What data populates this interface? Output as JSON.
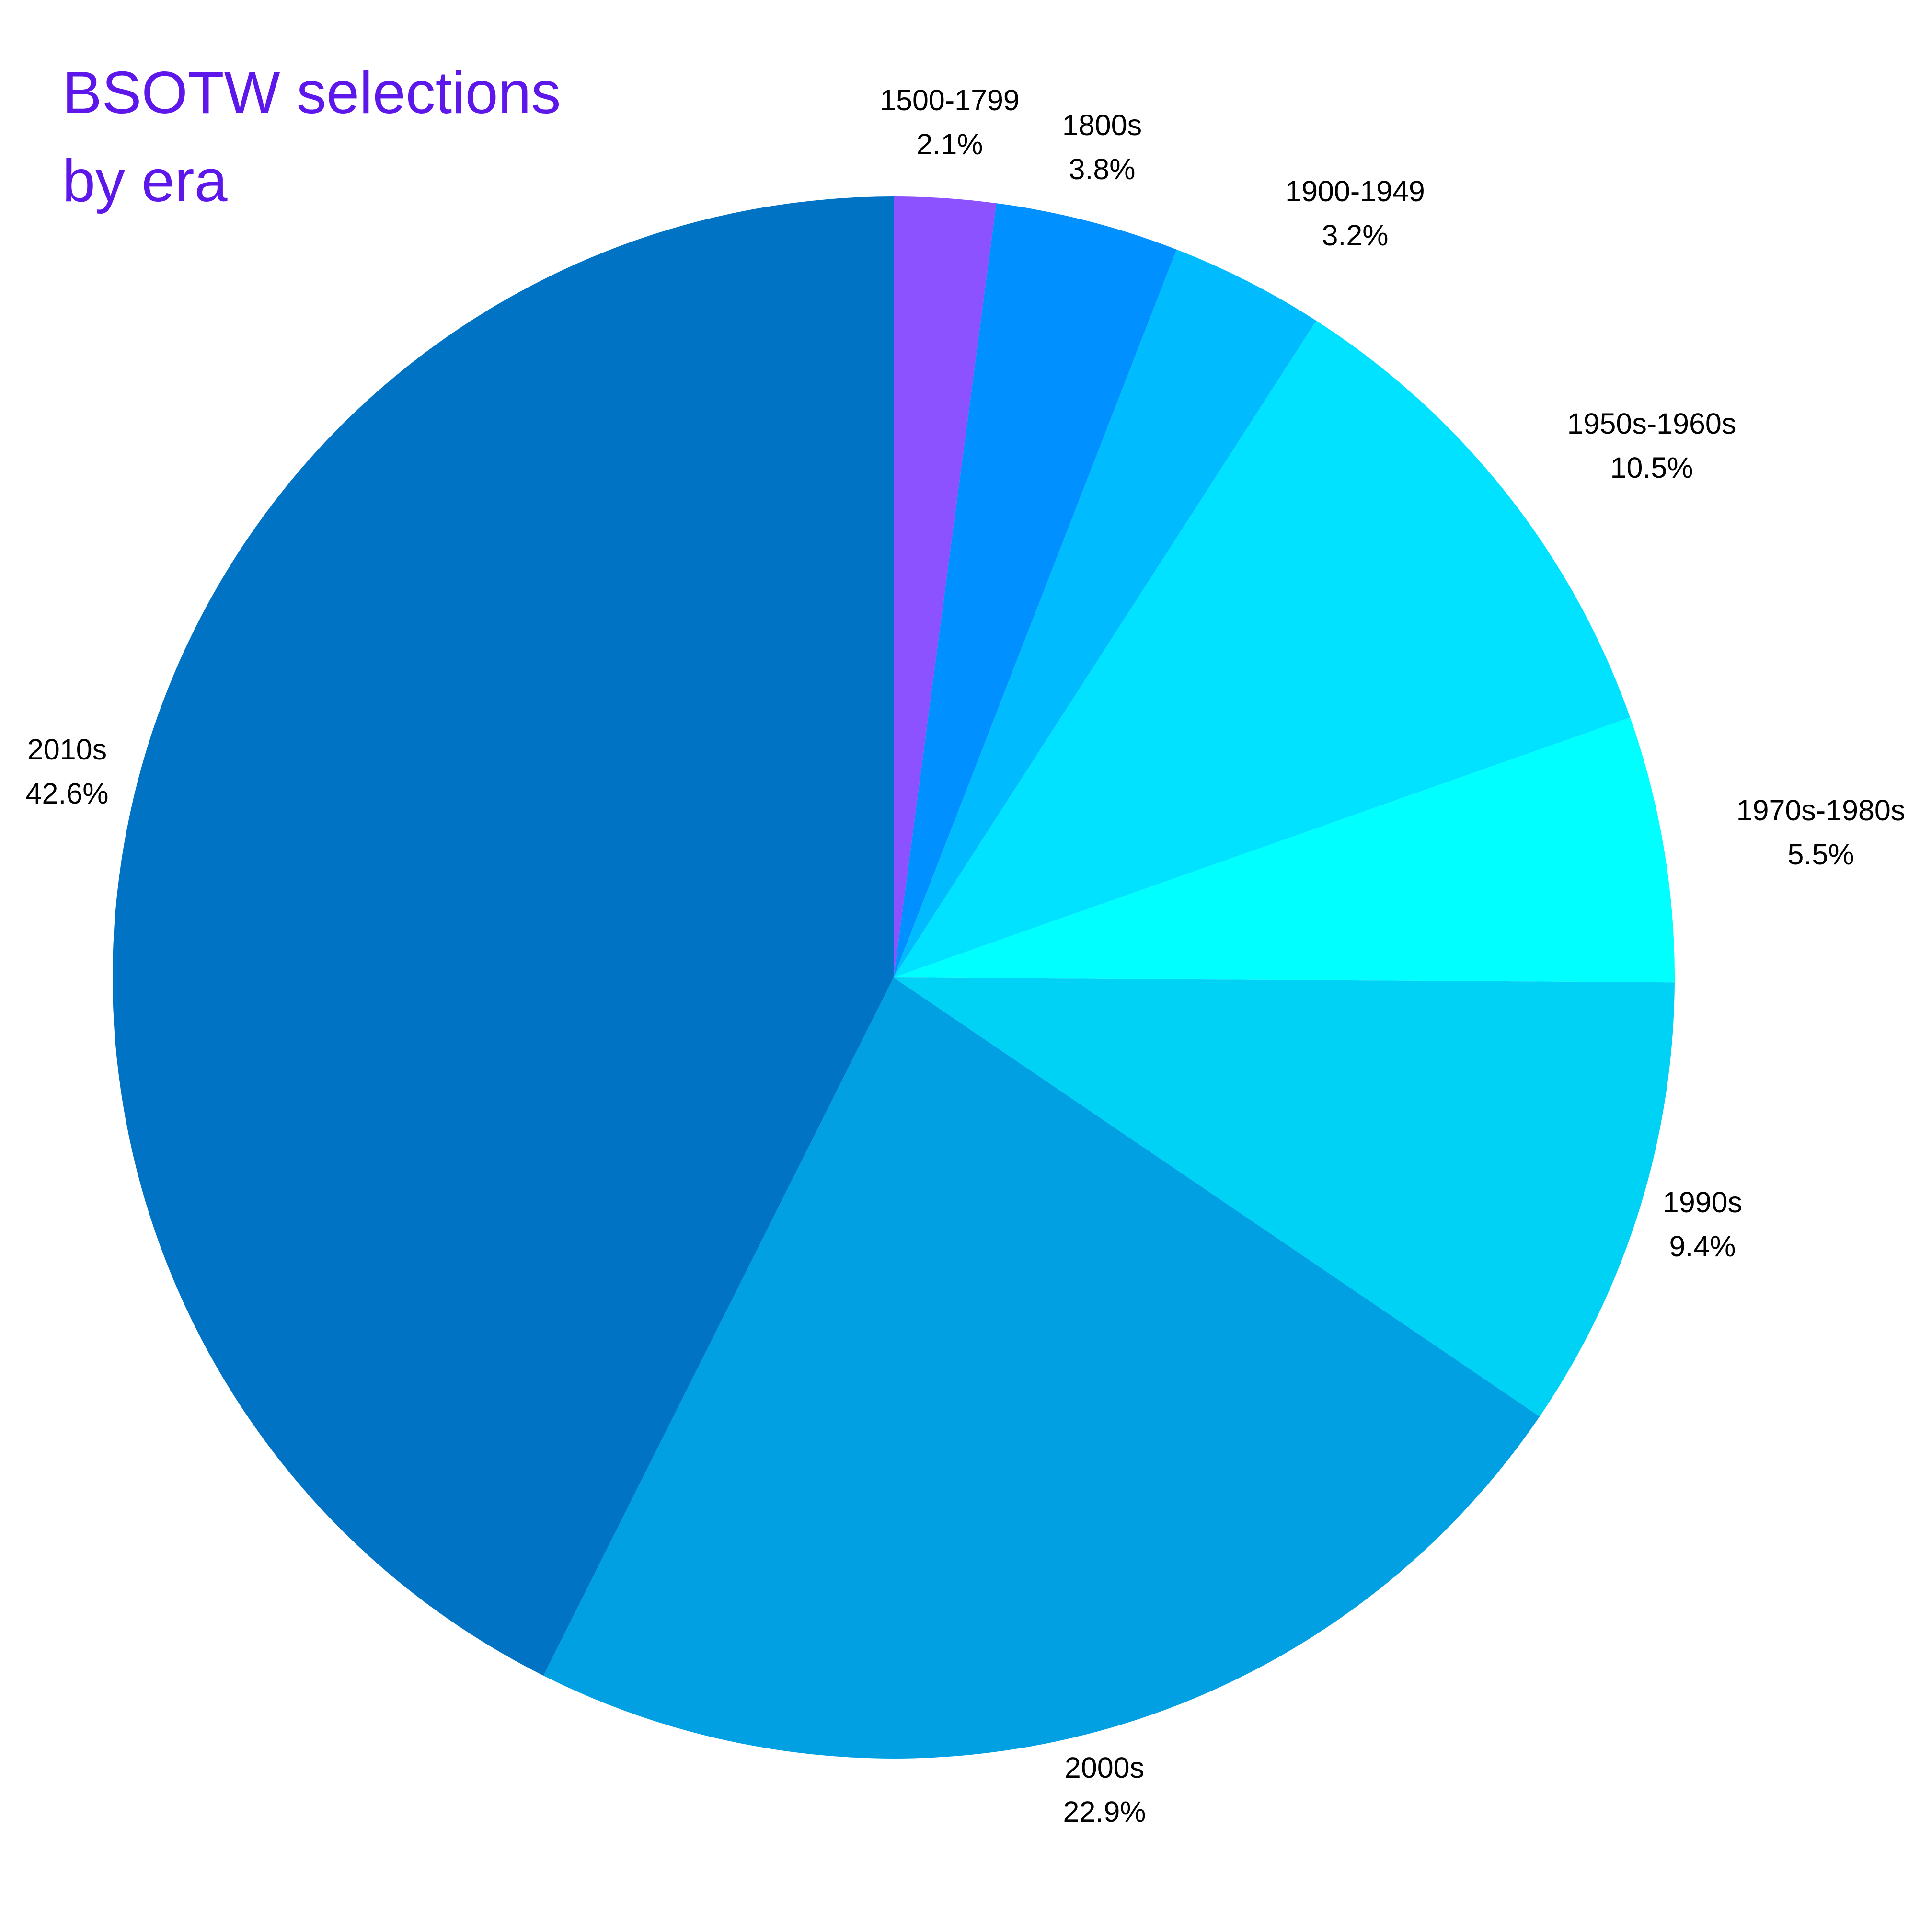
{
  "chart_data": {
    "type": "pie",
    "title_lines": [
      "BSOTW selections",
      "by era"
    ],
    "start_angle_deg": 0,
    "direction": "clockwise",
    "legend": "none",
    "colors": {
      "title": "#5e17eb",
      "label_text": "#000000",
      "background": "#ffffff"
    },
    "slices": [
      {
        "label": "1500-1799",
        "value": 2.1,
        "display": "2.1%",
        "color": "#8c52ff"
      },
      {
        "label": "1800s",
        "value": 3.8,
        "display": "3.8%",
        "color": "#0090ff"
      },
      {
        "label": "1900-1949",
        "value": 3.2,
        "display": "3.2%",
        "color": "#00bcff"
      },
      {
        "label": "1950s-1960s",
        "value": 10.5,
        "display": "10.5%",
        "color": "#00e2ff"
      },
      {
        "label": "1970s-1980s",
        "value": 5.5,
        "display": "5.5%",
        "color": "#00ffff"
      },
      {
        "label": "1990s",
        "value": 9.4,
        "display": "9.4%",
        "color": "#00d2f5"
      },
      {
        "label": "2000s",
        "value": 22.9,
        "display": "22.9%",
        "color": "#00a0e3"
      },
      {
        "label": "2010s",
        "value": 42.6,
        "display": "42.6%",
        "color": "#0073c5"
      }
    ]
  }
}
